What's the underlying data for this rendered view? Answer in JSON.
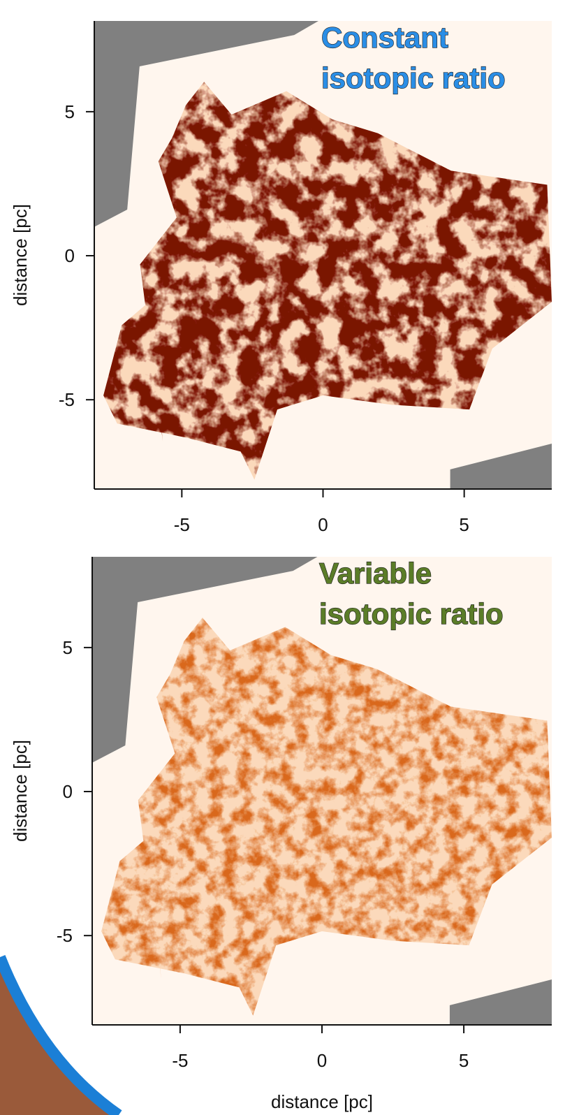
{
  "panels": [
    {
      "title": [
        "Constant",
        "isotopic ratio"
      ],
      "title_color": "#2a8ee6",
      "shade": "#7a1200",
      "xlim": [
        -8.1,
        8.1
      ],
      "ylim": [
        -8.1,
        8.15
      ],
      "xticks": [
        -5,
        0,
        5
      ],
      "yticks": [
        -5,
        0,
        5
      ],
      "ylabel": "distance [pc]"
    },
    {
      "title": [
        "Variable",
        "isotopic ratio"
      ],
      "title_color": "#5b7d28",
      "shade": "#d9681c",
      "xlim": [
        -8.1,
        8.1
      ],
      "ylim": [
        -8.1,
        8.15
      ],
      "xticks": [
        -5,
        0,
        5
      ],
      "yticks": [
        -5,
        0,
        5
      ],
      "ylabel": "distance [pc]"
    }
  ],
  "xlabel": "distance [pc]"
}
